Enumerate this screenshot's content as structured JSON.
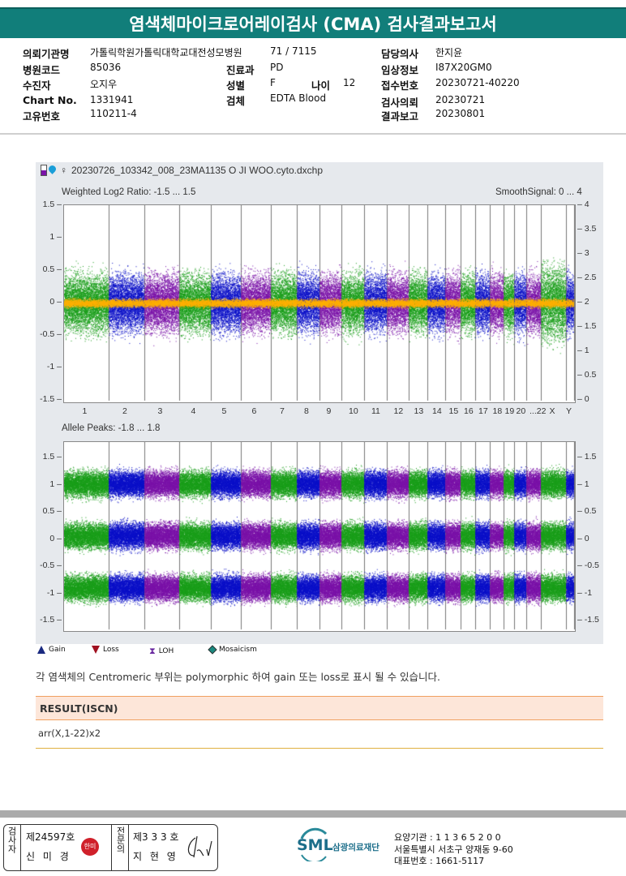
{
  "header": {
    "title": "염색체마이크로어레이검사 (CMA) 검사결과보고서"
  },
  "info": {
    "institution": {
      "label": "의뢰기관명",
      "value": "가톨릭학원가톨릭대학교대전성모병원",
      "extra": "71 / 7115"
    },
    "doctor": {
      "label": "담당의사",
      "value": "한지윤"
    },
    "hospital_code": {
      "label": "병원코드",
      "value": "85036"
    },
    "department": {
      "label": "진료과",
      "value": "PD"
    },
    "clinical_info": {
      "label": "임상정보",
      "value": "I87X20GM0"
    },
    "patient": {
      "label": "수진자",
      "value": "오지우"
    },
    "sex": {
      "label": "성별",
      "value": "F"
    },
    "age": {
      "label": "나이",
      "value": "12"
    },
    "receipt_no": {
      "label": "접수번호",
      "value": "20230721-40220"
    },
    "chart_no": {
      "label": "Chart No.",
      "value": "1331941"
    },
    "specimen": {
      "label": "검체",
      "value": "EDTA Blood"
    },
    "request_date": {
      "label": "검사의뢰",
      "value": "20230721"
    },
    "unique_no": {
      "label": "고유번호",
      "value": "110211-4"
    },
    "report_date": {
      "label": "결과보고",
      "value": "20230801"
    }
  },
  "plot": {
    "filename": "20230726_103342_008_23MA1135 O JI WOO.cyto.dxchp",
    "sex_symbol": "♀",
    "top_title": "Weighted Log2 Ratio: -1.5 ... 1.5",
    "top_right_title": "SmoothSignal: 0 ... 4",
    "top_left_ticks": [
      "1.5",
      "1",
      "0.5",
      "0",
      "-0.5",
      "-1",
      "-1.5"
    ],
    "top_right_ticks": [
      "4",
      "3.5",
      "3",
      "2.5",
      "2",
      "1.5",
      "1",
      "0.5",
      "0"
    ],
    "chromosomes": [
      "1",
      "2",
      "3",
      "4",
      "5",
      "6",
      "7",
      "8",
      "9",
      "10",
      "11",
      "12",
      "13",
      "14",
      "15",
      "16",
      "17",
      "18",
      "19",
      "20",
      "...22",
      "X",
      "Y"
    ],
    "bottom_title": "Allele Peaks: -1.8 ... 1.8",
    "bottom_left_ticks": [
      "1.5",
      "1",
      "0.5",
      "0",
      "-0.5",
      "-1",
      "-1.5"
    ],
    "bottom_right_ticks": [
      "1.5",
      "1",
      "0.5",
      "0",
      "-0.5",
      "-1",
      "-1.5"
    ],
    "colors": {
      "green": "#1a9e1a",
      "blue": "#0b10c8",
      "purple": "#7a12a8",
      "smooth": "#ffb000"
    }
  },
  "legend": [
    {
      "label": "Gain",
      "icon": "triangle-up-icon",
      "color": "#1a2a80"
    },
    {
      "label": "Loss",
      "icon": "triangle-down-icon",
      "color": "#a01020"
    },
    {
      "label": "LOH",
      "icon": "loh-icon",
      "color": "#6a2aa0"
    },
    {
      "label": "Mosaicism",
      "icon": "diamond-icon",
      "color": "#1a8a80"
    }
  ],
  "note": "각 염색체의 Centromeric 부위는 polymorphic 하여 gain 또는 loss로 표시 될 수 있습니다.",
  "result": {
    "heading": "RESULT(ISCN)",
    "value": "arr(X,1-22)x2"
  },
  "footer": {
    "tech_role": "검사자",
    "tech_no": "제24597호",
    "tech_name": "신 미 경",
    "tech_seal": "한미",
    "doc_role": "전문의",
    "doc_no": "제3 3 3 호",
    "doc_name": "지 현 영",
    "org_logo": "SML",
    "org_name": "삼광의료재단",
    "org_code": "요양기관 : 1 1 3 6 5 2 0 0",
    "org_address": "서울특별시 서초구 양재동 9-60",
    "org_phone": "대표번호 : 1661-5117"
  }
}
